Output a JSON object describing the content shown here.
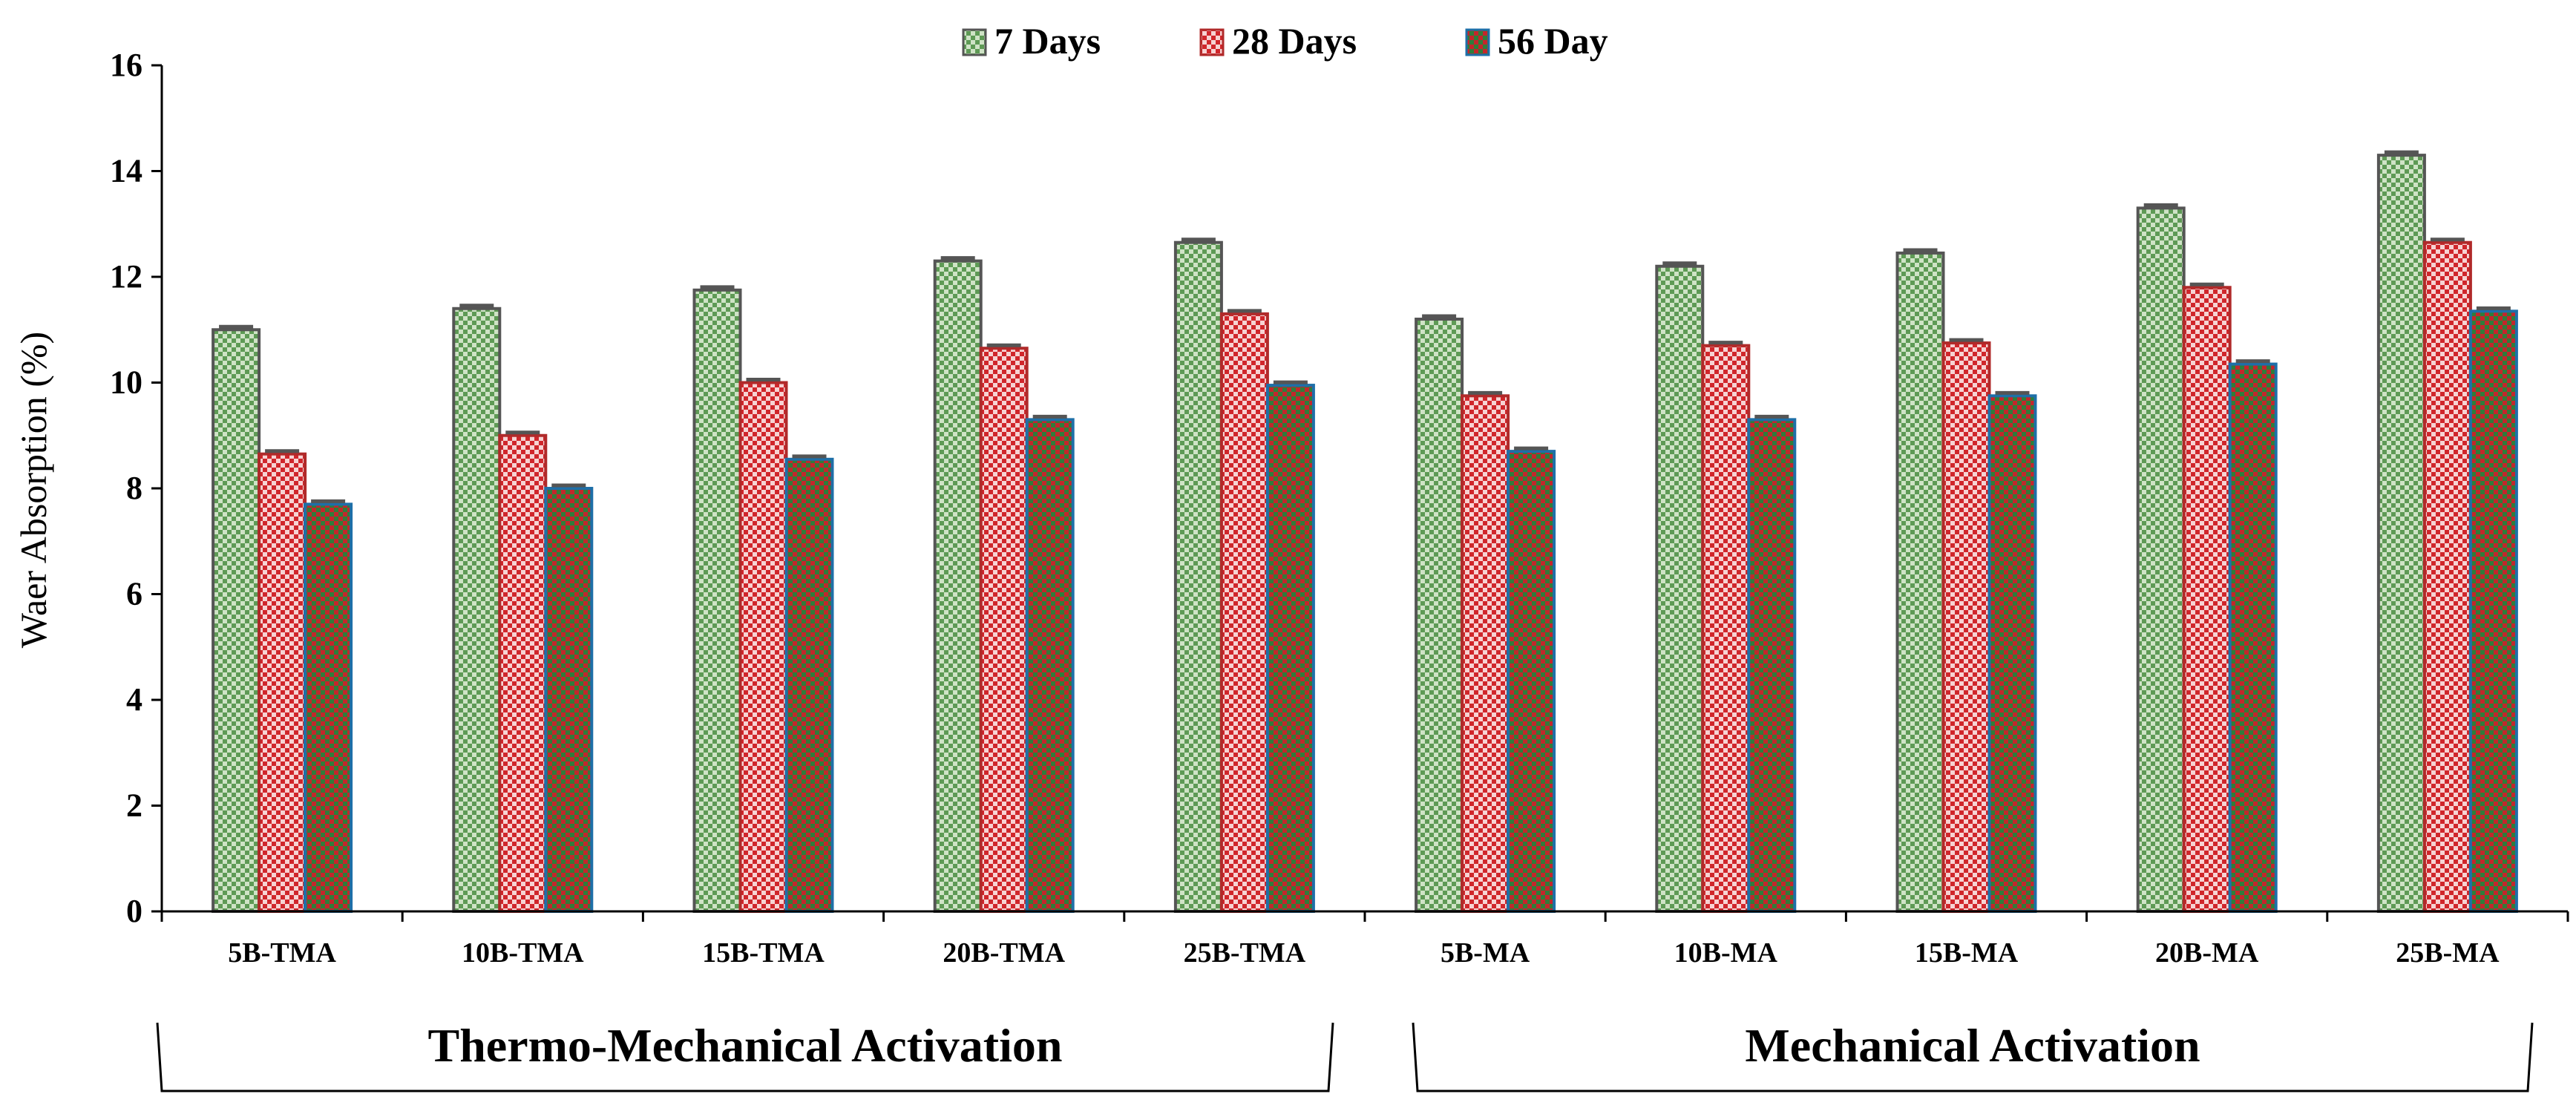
{
  "chart_data": {
    "type": "bar",
    "title": "",
    "xlabel": "",
    "ylabel": "Waer Absorption (%)",
    "ylim": [
      0,
      16
    ],
    "yticks": [
      0,
      2,
      4,
      6,
      8,
      10,
      12,
      14,
      16
    ],
    "grid": false,
    "legend_position": "top-center",
    "categories": [
      "5B-TMA",
      "10B-TMA",
      "15B-TMA",
      "20B-TMA",
      "25B-TMA",
      "5B-MA",
      "10B-MA",
      "15B-MA",
      "20B-MA",
      "25B-MA"
    ],
    "series": [
      {
        "name": "7 Days",
        "values": [
          11.0,
          11.4,
          11.75,
          12.3,
          12.65,
          11.2,
          12.2,
          12.45,
          13.3,
          14.3
        ],
        "color": "#7fae7a",
        "pattern": "checker-green"
      },
      {
        "name": "28 Days",
        "values": [
          8.65,
          9.0,
          10.0,
          10.65,
          11.3,
          9.75,
          10.7,
          10.75,
          11.8,
          12.65
        ],
        "color": "#d23a3a",
        "pattern": "checker-red"
      },
      {
        "name": "56 Day",
        "values": [
          7.7,
          8.0,
          8.55,
          9.3,
          9.95,
          8.7,
          9.3,
          9.75,
          10.35,
          11.35
        ],
        "color": "#c0392b",
        "pattern": "checker-redgreen"
      }
    ],
    "groups": [
      {
        "label": "Thermo-Mechanical Activation"
      },
      {
        "label": "Mechanical Activation"
      }
    ]
  }
}
